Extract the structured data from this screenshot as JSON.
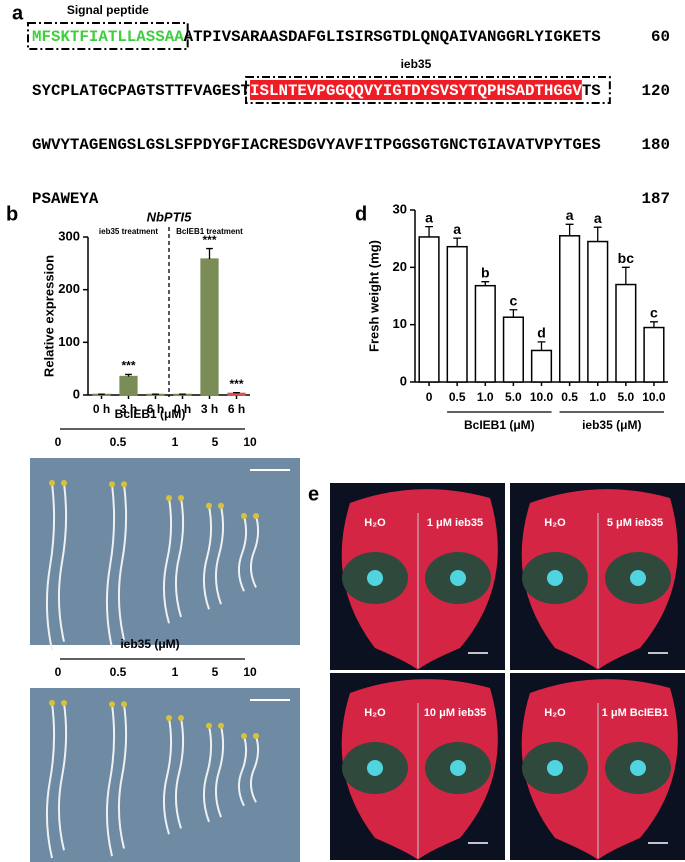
{
  "panel_labels": [
    "a",
    "b",
    "d",
    "e"
  ],
  "sequence": {
    "lines": [
      {
        "segments": [
          {
            "text": "MFSKTFIATLLASSAA",
            "color": "#3ecf3e",
            "box_label": "Signal peptide"
          },
          {
            "text": "ATPIVSARAASDAFGLISIRSGTDLQNQAIVANGGRLYIGKETS",
            "color": "#000000"
          }
        ],
        "end": 60
      },
      {
        "segments": [
          {
            "text": "SYCPLATGCPAGTSTTFVAGEST",
            "color": "#000000"
          },
          {
            "text": "ISLNTEVPGGQQVYIGTDYSVSYTQPHSADTHGGV",
            "color": "#ffffff",
            "background": "#ee1c24",
            "box_label": "ieb35"
          },
          {
            "text": "TS",
            "color": "#000000"
          }
        ],
        "end": 120
      },
      {
        "segments": [
          {
            "text": "GWVYTAGENGSLGSLSFPDYGFIACRESDGVYAVFITPGGSGTGNCTGIAVATVPYTGES",
            "color": "#000000"
          }
        ],
        "end": 180
      },
      {
        "segments": [
          {
            "text": "PSAWEYA",
            "color": "#000000"
          }
        ],
        "end": 187
      }
    ]
  },
  "chart_data": [
    {
      "type": "bar",
      "title": "NbPTI5",
      "y_label": "Relative expression",
      "categories": [
        "0 h",
        "3 h",
        "6 h",
        "0 h",
        "3 h",
        "6 h"
      ],
      "values": [
        1,
        35,
        1,
        1,
        258,
        3
      ],
      "errors": [
        0.5,
        4,
        0.5,
        0.5,
        20,
        1.5
      ],
      "colors": [
        "#7b8d57",
        "#7b8d57",
        "#7b8d57",
        "#7b8d57",
        "#7b8d57",
        "#d9534f"
      ],
      "significance": [
        null,
        "***",
        null,
        null,
        "***",
        "***"
      ],
      "groups": [
        {
          "label": "ieb35 treatment",
          "start": 0,
          "size": 3
        },
        {
          "label": "BcIEB1 treatment",
          "start": 3,
          "size": 3
        }
      ],
      "ylim": [
        0,
        300
      ],
      "yticks": [
        0,
        100,
        200,
        300
      ]
    },
    {
      "type": "bar",
      "y_label": "Fresh weight (mg)",
      "categories": [
        "0",
        "0.5",
        "1.0",
        "5.0",
        "10.0",
        "0.5",
        "1.0",
        "5.0",
        "10.0"
      ],
      "values": [
        25.3,
        23.6,
        16.8,
        11.3,
        5.5,
        25.5,
        24.5,
        17,
        9.5
      ],
      "errors": [
        1.8,
        1.5,
        0.7,
        1.3,
        1.5,
        2,
        2.5,
        3,
        1
      ],
      "colors": [
        "#ffffff",
        "#ffffff",
        "#ffffff",
        "#ffffff",
        "#ffffff",
        "#ffffff",
        "#ffffff",
        "#ffffff",
        "#ffffff"
      ],
      "significance": [
        "a",
        "a",
        "b",
        "c",
        "d",
        "a",
        "a",
        "bc",
        "c"
      ],
      "groups": [
        {
          "label": "BcIEB1 (μM)",
          "start": 1,
          "size": 4
        },
        {
          "label": "ieb35 (μM)",
          "start": 5,
          "size": 4
        }
      ],
      "ylim": [
        0,
        30
      ],
      "yticks": [
        0,
        10,
        20,
        30
      ]
    }
  ],
  "seedlings": [
    {
      "label": "BcIEB1 (μM)",
      "concentrations": [
        0,
        0.5,
        1,
        5,
        10
      ]
    },
    {
      "label": "ieb35 (μM)",
      "concentrations": [
        0,
        0.5,
        1,
        5,
        10
      ]
    }
  ],
  "leaf_panels": [
    {
      "left": "H₂O",
      "right": "1 μM ieb35"
    },
    {
      "left": "H₂O",
      "right": "5 μM ieb35"
    },
    {
      "left": "H₂O",
      "right": "10 μM ieb35"
    },
    {
      "left": "H₂O",
      "right": "1 μM BcIEB1"
    }
  ]
}
